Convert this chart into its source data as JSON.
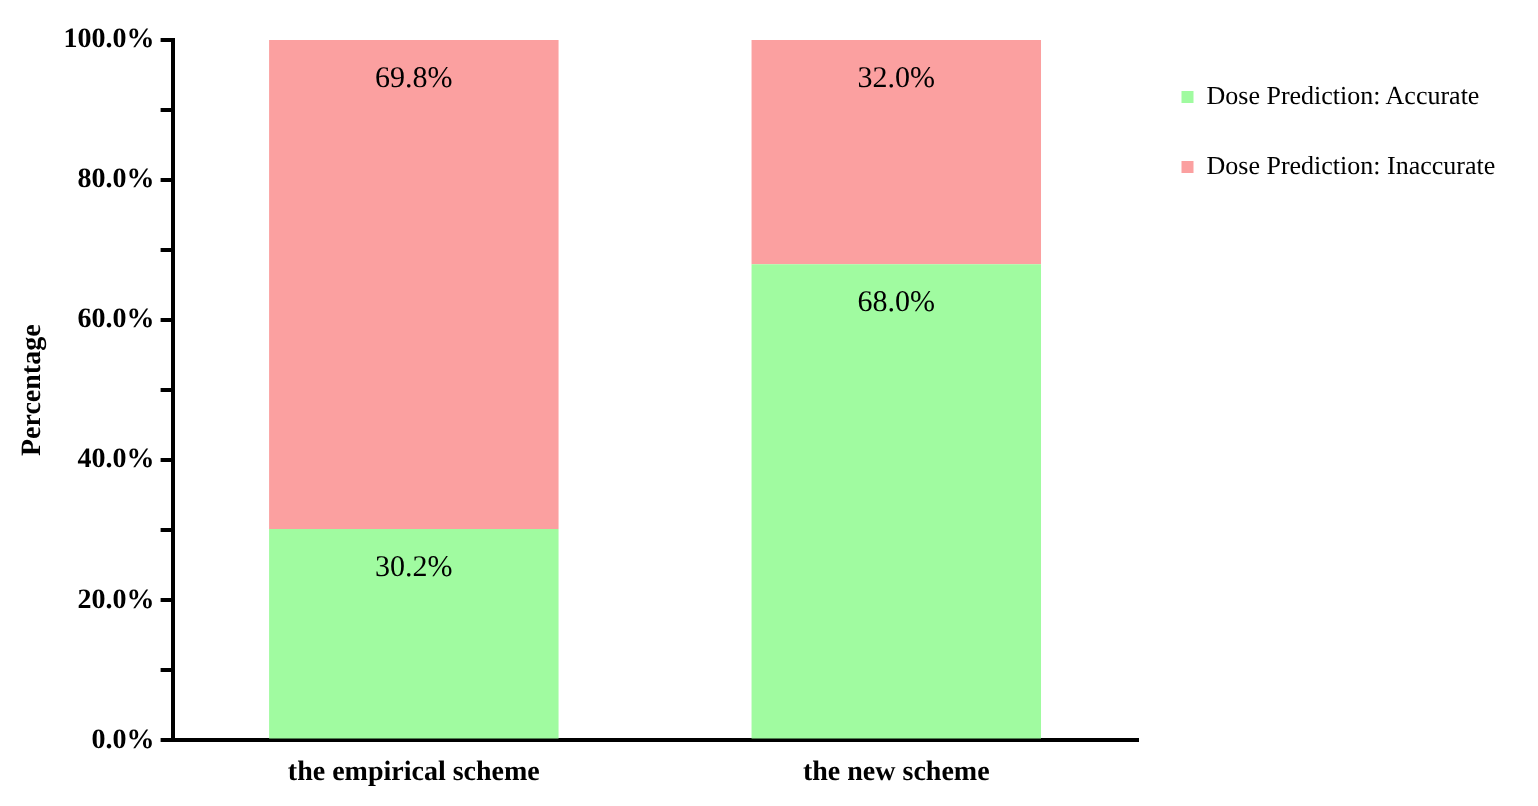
{
  "chart_data": {
    "type": "bar",
    "stacked": true,
    "ylabel": "Percentage",
    "categories": [
      "the empirical scheme",
      "the new scheme"
    ],
    "series": [
      {
        "name": "Dose Prediction: Accurate",
        "color": "#a0fba0",
        "values": [
          30.2,
          68.0
        ],
        "value_labels": [
          "30.2%",
          "68.0%"
        ]
      },
      {
        "name": "Dose Prediction: Inaccurate",
        "color": "#fba0a0",
        "values": [
          69.8,
          32.0
        ],
        "value_labels": [
          "69.8%",
          "32.0%"
        ]
      }
    ],
    "ylim": [
      0,
      100
    ],
    "yticks": [
      {
        "value": 0,
        "label": "0.0%"
      },
      {
        "value": 10,
        "label": null
      },
      {
        "value": 20,
        "label": "20.0%"
      },
      {
        "value": 30,
        "label": null
      },
      {
        "value": 40,
        "label": "40.0%"
      },
      {
        "value": 50,
        "label": null
      },
      {
        "value": 60,
        "label": "60.0%"
      },
      {
        "value": 70,
        "label": null
      },
      {
        "value": 80,
        "label": "80.0%"
      },
      {
        "value": 90,
        "label": null
      },
      {
        "value": 100,
        "label": "100.0%"
      }
    ],
    "grid": false,
    "legend": "top right"
  }
}
